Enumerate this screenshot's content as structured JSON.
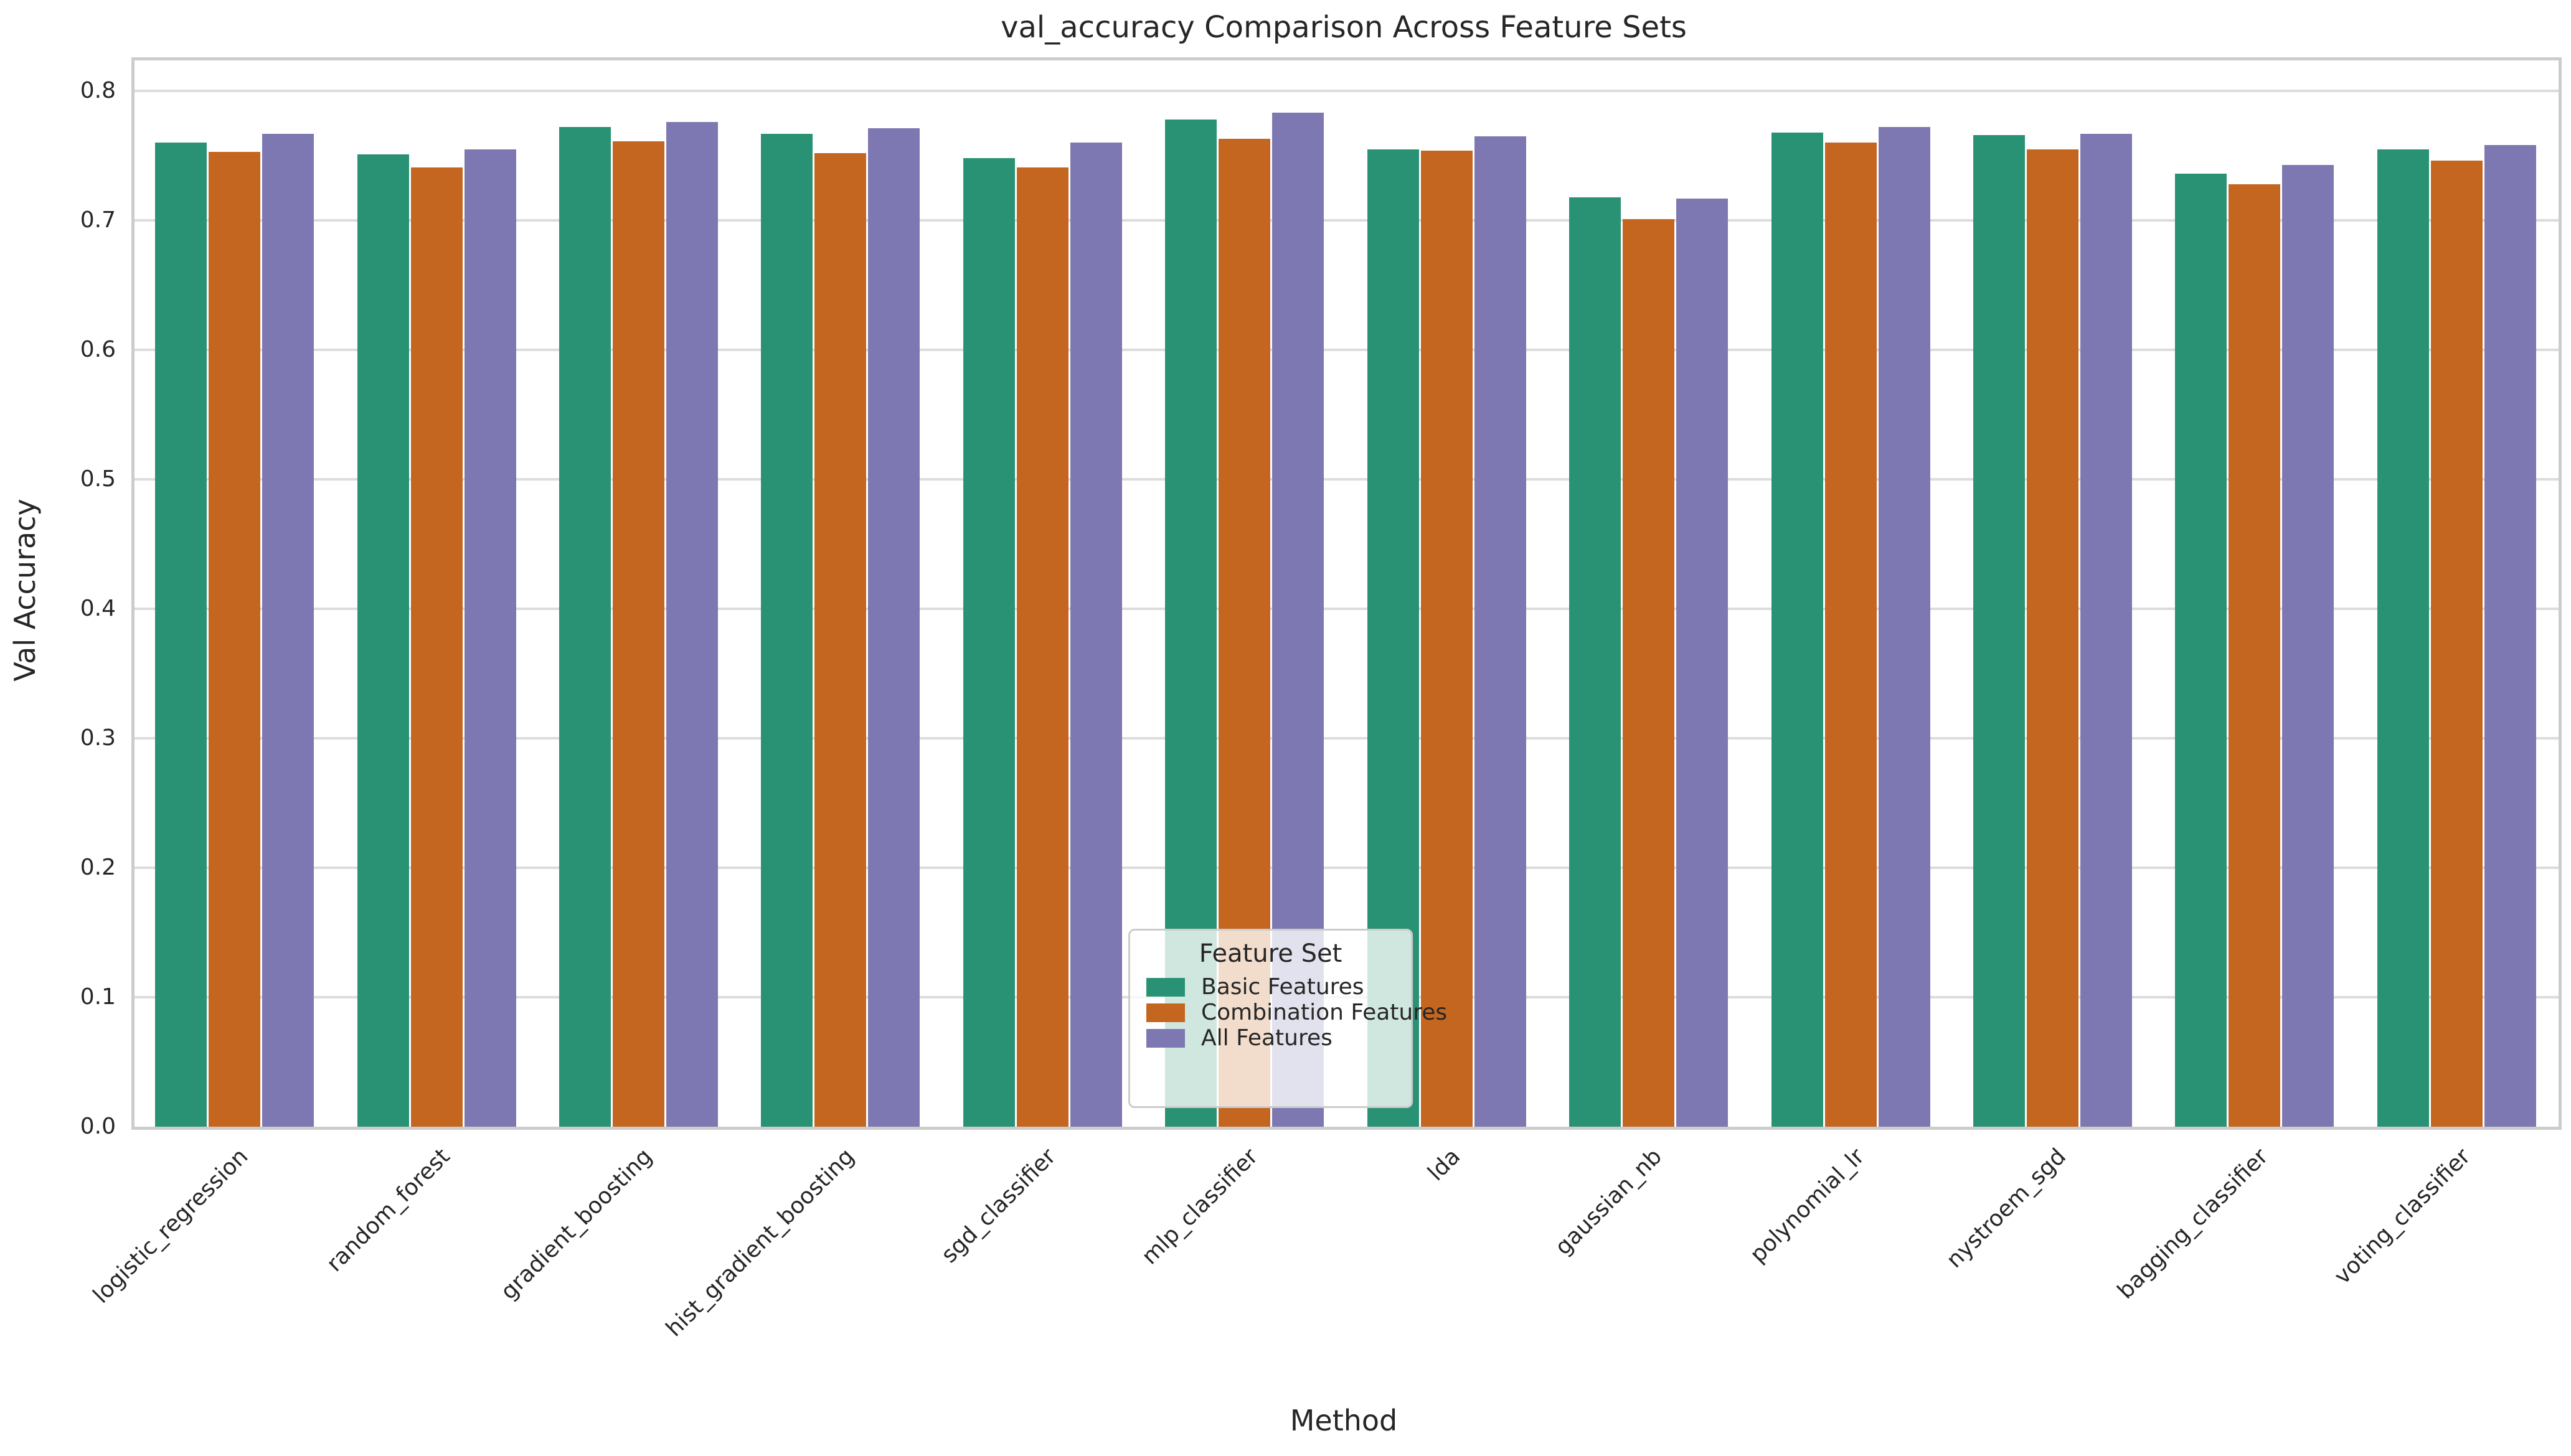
{
  "chart_data": {
    "type": "bar",
    "title": "val_accuracy Comparison Across Feature Sets",
    "xlabel": "Method",
    "ylabel": "Val Accuracy",
    "categories": [
      "logistic_regression",
      "random_forest",
      "gradient_boosting",
      "hist_gradient_boosting",
      "sgd_classifier",
      "mlp_classifier",
      "lda",
      "gaussian_nb",
      "polynomial_lr",
      "nystroem_sgd",
      "bagging_classifier",
      "voting_classifier"
    ],
    "series": [
      {
        "name": "Basic Features",
        "color": "#2a9274",
        "values": [
          0.76,
          0.751,
          0.772,
          0.767,
          0.748,
          0.778,
          0.755,
          0.718,
          0.768,
          0.766,
          0.736,
          0.755
        ]
      },
      {
        "name": "Combination Features",
        "color": "#c4661f",
        "values": [
          0.753,
          0.741,
          0.761,
          0.752,
          0.741,
          0.763,
          0.754,
          0.701,
          0.76,
          0.755,
          0.728,
          0.746
        ]
      },
      {
        "name": "All Features",
        "color": "#7d78b1",
        "values": [
          0.767,
          0.755,
          0.776,
          0.771,
          0.76,
          0.783,
          0.765,
          0.717,
          0.772,
          0.767,
          0.743,
          0.758
        ]
      }
    ],
    "ylim": [
      0,
      0.8236
    ],
    "ytick_labels": [
      "0.0",
      "0.1",
      "0.2",
      "0.3",
      "0.4",
      "0.5",
      "0.6",
      "0.7",
      "0.8"
    ],
    "legend_title": "Feature Set",
    "legend_position": "lower center",
    "grid": true,
    "text_color": "#262626",
    "grid_color": "#dcdcdc",
    "spine_color": "#cccccc"
  }
}
